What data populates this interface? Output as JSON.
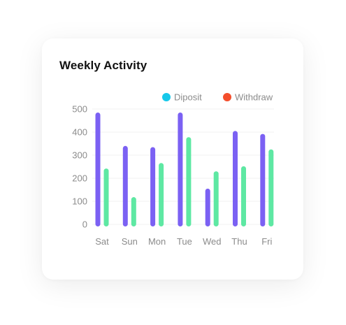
{
  "card": {
    "title": "Weekly Activity"
  },
  "chart_data": {
    "type": "bar",
    "title": "Weekly Activity",
    "categories": [
      "Sat",
      "Sun",
      "Mon",
      "Tue",
      "Wed",
      "Thu",
      "Fri"
    ],
    "series": [
      {
        "name": "Diposit",
        "values": [
          485,
          340,
          335,
          485,
          155,
          405,
          392
        ]
      },
      {
        "name": "Withdraw",
        "values": [
          242,
          118,
          266,
          378,
          230,
          252,
          325
        ]
      }
    ],
    "series_colors": [
      "#7b61f3",
      "#5ee8a3"
    ],
    "legend_colors": [
      "#16c8ea",
      "#f44e2c"
    ],
    "legend": {
      "position": "top-right",
      "items": [
        {
          "label": "Diposit",
          "color": "#16c8ea"
        },
        {
          "label": "Withdraw",
          "color": "#f44e2c"
        }
      ]
    },
    "ylim": [
      0,
      500
    ],
    "yticks": [
      0,
      100,
      200,
      300,
      400,
      500
    ],
    "grid": true,
    "xlabel": "",
    "ylabel": ""
  }
}
